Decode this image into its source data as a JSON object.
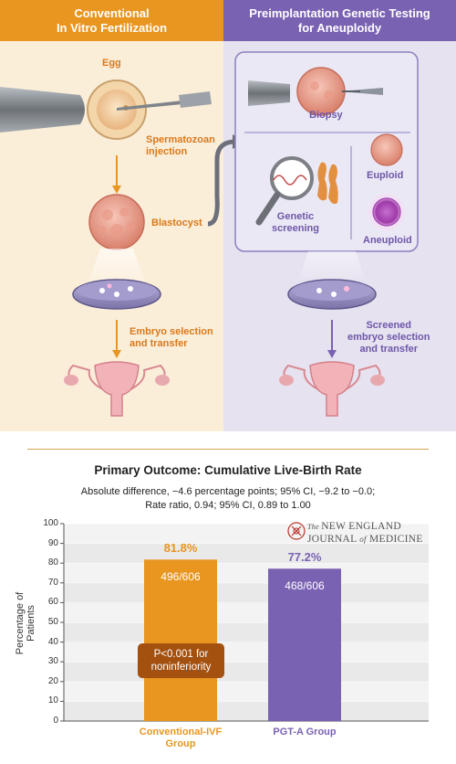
{
  "panels": {
    "left": {
      "title": "Conventional\nIn Vitro Fertilization",
      "egg_label": "Egg",
      "injection_label": "Spermatozoan\ninjection",
      "blastocyst_label": "Blastocyst",
      "selection_label": "Embryo selection\nand transfer"
    },
    "right": {
      "title": "Preimplantation Genetic Testing\nfor Aneuploidy",
      "biopsy_label": "Biopsy",
      "screening_label": "Genetic\nscreening",
      "euploid_label": "Euploid",
      "aneuploid_label": "Aneuploid",
      "selection_label": "Screened\nembryo selection\nand transfer"
    }
  },
  "colors": {
    "orange_accent": "#e8961f",
    "purple_accent": "#7a62b3",
    "pvalue_box": "#a4500e"
  },
  "journal_logo": {
    "line1_prefix": "The ",
    "line1": "NEW ENGLAND",
    "line2a": "JOURNAL ",
    "line2_of": "of",
    "line2b": " MEDICINE"
  },
  "chart_data": {
    "type": "bar",
    "title": "Primary Outcome: Cumulative Live-Birth Rate",
    "subtitle_1": "Absolute difference, −4.6 percentage points; 95% CI, −9.2 to −0.0;",
    "subtitle_2": "Rate ratio, 0.94; 95% CI, 0.89 to 1.00",
    "ylabel": "Percentage of Patients",
    "ylim": [
      0,
      100
    ],
    "yticks": [
      "0",
      "10",
      "20",
      "30",
      "40",
      "50",
      "60",
      "70",
      "80",
      "90",
      "100"
    ],
    "grid": true,
    "categories": [
      "Conventional-IVF\nGroup",
      "PGT-A Group"
    ],
    "values": [
      81.8,
      77.2
    ],
    "value_labels": [
      "81.8%",
      "77.2%"
    ],
    "fraction_labels": [
      "496/606",
      "468/606"
    ],
    "bar_colors": [
      "#e8961f",
      "#7a62b3"
    ],
    "annotation": "P<0.001 for\nnoninferiority"
  }
}
